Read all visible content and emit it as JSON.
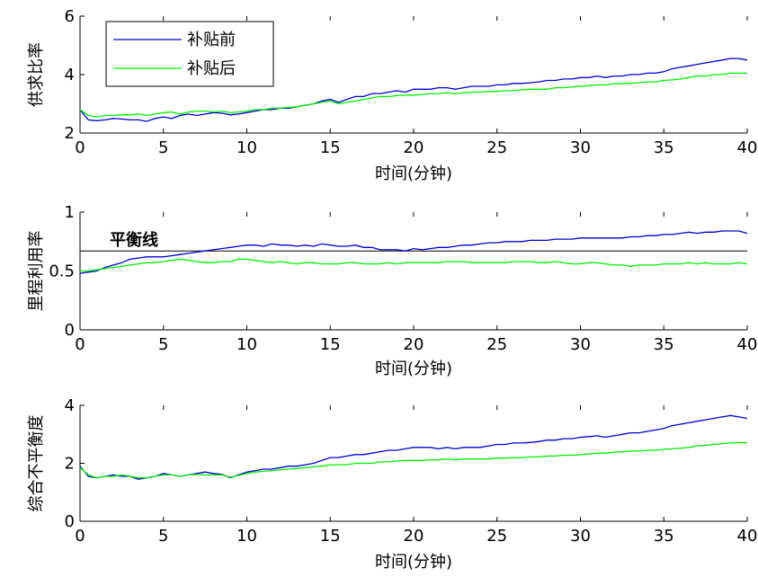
{
  "chart_data": [
    {
      "type": "line",
      "ylabel": "供求比率",
      "xlabel": "时间(分钟)",
      "xlim": [
        0,
        40
      ],
      "ylim": [
        2,
        6
      ],
      "xticks": [
        "0",
        "5",
        "10",
        "15",
        "20",
        "25",
        "30",
        "35",
        "40"
      ],
      "yticks": [
        "2",
        "4",
        "6"
      ],
      "legend": {
        "position": "top-left",
        "entries": [
          "补贴前",
          "补贴后"
        ]
      },
      "series": [
        {
          "name": "补贴前",
          "color": "#0000cc",
          "x": [
            0,
            0.5,
            1,
            1.5,
            2,
            2.5,
            3,
            3.5,
            4,
            4.5,
            5,
            5.5,
            6,
            6.5,
            7,
            7.5,
            8,
            8.5,
            9,
            9.5,
            10,
            10.5,
            11,
            11.5,
            12,
            12.5,
            13,
            13.5,
            14,
            14.5,
            15,
            15.5,
            16,
            16.5,
            17,
            17.5,
            18,
            18.5,
            19,
            19.5,
            20,
            20.5,
            21,
            21.5,
            22,
            22.5,
            23,
            23.5,
            24,
            24.5,
            25,
            25.5,
            26,
            26.5,
            27,
            27.5,
            28,
            28.5,
            29,
            29.5,
            30,
            30.5,
            31,
            31.5,
            32,
            32.5,
            33,
            33.5,
            34,
            34.5,
            35,
            35.5,
            36,
            36.5,
            37,
            37.5,
            38,
            38.5,
            39,
            39.5,
            40
          ],
          "y": [
            2.8,
            2.45,
            2.42,
            2.45,
            2.5,
            2.48,
            2.45,
            2.45,
            2.4,
            2.5,
            2.55,
            2.5,
            2.6,
            2.65,
            2.6,
            2.65,
            2.7,
            2.68,
            2.62,
            2.65,
            2.7,
            2.75,
            2.8,
            2.8,
            2.85,
            2.85,
            2.9,
            2.95,
            3.0,
            3.1,
            3.15,
            3.05,
            3.15,
            3.25,
            3.25,
            3.35,
            3.35,
            3.4,
            3.45,
            3.4,
            3.5,
            3.5,
            3.5,
            3.55,
            3.55,
            3.5,
            3.55,
            3.6,
            3.6,
            3.6,
            3.65,
            3.65,
            3.7,
            3.7,
            3.72,
            3.75,
            3.8,
            3.8,
            3.85,
            3.85,
            3.9,
            3.9,
            3.95,
            3.9,
            3.95,
            3.95,
            4.0,
            4.0,
            4.05,
            4.05,
            4.1,
            4.2,
            4.25,
            4.3,
            4.35,
            4.4,
            4.45,
            4.5,
            4.55,
            4.55,
            4.5
          ]
        },
        {
          "name": "补贴后",
          "color": "#00ee00",
          "x": [
            0,
            0.5,
            1,
            1.5,
            2,
            2.5,
            3,
            3.5,
            4,
            4.5,
            5,
            5.5,
            6,
            6.5,
            7,
            7.5,
            8,
            8.5,
            9,
            9.5,
            10,
            10.5,
            11,
            11.5,
            12,
            12.5,
            13,
            13.5,
            14,
            14.5,
            15,
            15.5,
            16,
            16.5,
            17,
            17.5,
            18,
            18.5,
            19,
            19.5,
            20,
            20.5,
            21,
            21.5,
            22,
            22.5,
            23,
            23.5,
            24,
            24.5,
            25,
            25.5,
            26,
            26.5,
            27,
            27.5,
            28,
            28.5,
            29,
            29.5,
            30,
            30.5,
            31,
            31.5,
            32,
            32.5,
            33,
            33.5,
            34,
            34.5,
            35,
            35.5,
            36,
            36.5,
            37,
            37.5,
            38,
            38.5,
            39,
            39.5,
            40
          ],
          "y": [
            2.8,
            2.6,
            2.55,
            2.6,
            2.6,
            2.62,
            2.62,
            2.65,
            2.6,
            2.65,
            2.7,
            2.72,
            2.65,
            2.72,
            2.75,
            2.75,
            2.72,
            2.75,
            2.7,
            2.72,
            2.75,
            2.8,
            2.8,
            2.85,
            2.85,
            2.88,
            2.9,
            2.95,
            3.0,
            3.05,
            3.1,
            3.0,
            3.05,
            3.1,
            3.15,
            3.2,
            3.25,
            3.25,
            3.28,
            3.3,
            3.3,
            3.32,
            3.35,
            3.35,
            3.38,
            3.35,
            3.38,
            3.4,
            3.4,
            3.42,
            3.42,
            3.45,
            3.45,
            3.48,
            3.5,
            3.5,
            3.5,
            3.55,
            3.55,
            3.58,
            3.6,
            3.62,
            3.65,
            3.65,
            3.68,
            3.7,
            3.7,
            3.72,
            3.75,
            3.75,
            3.8,
            3.82,
            3.85,
            3.9,
            3.95,
            3.95,
            4.0,
            4.0,
            4.05,
            4.05,
            4.05
          ]
        }
      ]
    },
    {
      "type": "line",
      "ylabel": "里程利用率",
      "xlabel": "时间(分钟)",
      "xlim": [
        0,
        40
      ],
      "ylim": [
        0,
        1
      ],
      "xticks": [
        "0",
        "5",
        "10",
        "15",
        "20",
        "25",
        "30",
        "35",
        "40"
      ],
      "yticks": [
        "0",
        "0.5",
        "1"
      ],
      "annotation": {
        "text": "平衡线",
        "y": 0.67
      },
      "series": [
        {
          "name": "补贴前",
          "color": "#0000cc",
          "x": [
            0,
            0.5,
            1,
            1.5,
            2,
            2.5,
            3,
            3.5,
            4,
            4.5,
            5,
            5.5,
            6,
            6.5,
            7,
            7.5,
            8,
            8.5,
            9,
            9.5,
            10,
            10.5,
            11,
            11.5,
            12,
            12.5,
            13,
            13.5,
            14,
            14.5,
            15,
            15.5,
            16,
            16.5,
            17,
            17.5,
            18,
            18.5,
            19,
            19.5,
            20,
            20.5,
            21,
            21.5,
            22,
            22.5,
            23,
            23.5,
            24,
            24.5,
            25,
            25.5,
            26,
            26.5,
            27,
            27.5,
            28,
            28.5,
            29,
            29.5,
            30,
            30.5,
            31,
            31.5,
            32,
            32.5,
            33,
            33.5,
            34,
            34.5,
            35,
            35.5,
            36,
            36.5,
            37,
            37.5,
            38,
            38.5,
            39,
            39.5,
            40
          ],
          "y": [
            0.48,
            0.49,
            0.5,
            0.53,
            0.55,
            0.57,
            0.6,
            0.61,
            0.62,
            0.62,
            0.62,
            0.63,
            0.64,
            0.65,
            0.66,
            0.67,
            0.68,
            0.69,
            0.7,
            0.71,
            0.72,
            0.72,
            0.71,
            0.73,
            0.72,
            0.72,
            0.71,
            0.72,
            0.71,
            0.73,
            0.72,
            0.71,
            0.71,
            0.72,
            0.7,
            0.7,
            0.68,
            0.68,
            0.68,
            0.67,
            0.69,
            0.68,
            0.69,
            0.7,
            0.7,
            0.71,
            0.72,
            0.72,
            0.73,
            0.74,
            0.74,
            0.75,
            0.75,
            0.75,
            0.76,
            0.76,
            0.76,
            0.77,
            0.77,
            0.77,
            0.78,
            0.78,
            0.78,
            0.78,
            0.78,
            0.78,
            0.79,
            0.79,
            0.8,
            0.8,
            0.81,
            0.81,
            0.82,
            0.83,
            0.82,
            0.83,
            0.83,
            0.84,
            0.84,
            0.84,
            0.82
          ]
        },
        {
          "name": "补贴后",
          "color": "#00ee00",
          "x": [
            0,
            0.5,
            1,
            1.5,
            2,
            2.5,
            3,
            3.5,
            4,
            4.5,
            5,
            5.5,
            6,
            6.5,
            7,
            7.5,
            8,
            8.5,
            9,
            9.5,
            10,
            10.5,
            11,
            11.5,
            12,
            12.5,
            13,
            13.5,
            14,
            14.5,
            15,
            15.5,
            16,
            16.5,
            17,
            17.5,
            18,
            18.5,
            19,
            19.5,
            20,
            20.5,
            21,
            21.5,
            22,
            22.5,
            23,
            23.5,
            24,
            24.5,
            25,
            25.5,
            26,
            26.5,
            27,
            27.5,
            28,
            28.5,
            29,
            29.5,
            30,
            30.5,
            31,
            31.5,
            32,
            32.5,
            33,
            33.5,
            34,
            34.5,
            35,
            35.5,
            36,
            36.5,
            37,
            37.5,
            38,
            38.5,
            39,
            39.5,
            40
          ],
          "y": [
            0.5,
            0.5,
            0.51,
            0.52,
            0.53,
            0.54,
            0.55,
            0.56,
            0.57,
            0.57,
            0.58,
            0.59,
            0.6,
            0.59,
            0.58,
            0.57,
            0.57,
            0.58,
            0.58,
            0.6,
            0.6,
            0.59,
            0.58,
            0.57,
            0.58,
            0.57,
            0.56,
            0.57,
            0.57,
            0.56,
            0.56,
            0.56,
            0.57,
            0.57,
            0.56,
            0.56,
            0.56,
            0.57,
            0.56,
            0.57,
            0.57,
            0.57,
            0.57,
            0.57,
            0.58,
            0.58,
            0.58,
            0.57,
            0.57,
            0.57,
            0.57,
            0.57,
            0.58,
            0.58,
            0.58,
            0.57,
            0.57,
            0.58,
            0.57,
            0.56,
            0.56,
            0.57,
            0.57,
            0.56,
            0.55,
            0.55,
            0.54,
            0.55,
            0.55,
            0.55,
            0.56,
            0.56,
            0.56,
            0.57,
            0.56,
            0.57,
            0.56,
            0.56,
            0.56,
            0.57,
            0.56
          ]
        }
      ]
    },
    {
      "type": "line",
      "ylabel": "综合不平衡度",
      "xlabel": "时间(分钟)",
      "xlim": [
        0,
        40
      ],
      "ylim": [
        0,
        4
      ],
      "xticks": [
        "0",
        "5",
        "10",
        "15",
        "20",
        "25",
        "30",
        "35",
        "40"
      ],
      "yticks": [
        "0",
        "2",
        "4"
      ],
      "series": [
        {
          "name": "补贴前",
          "color": "#0000cc",
          "x": [
            0,
            0.5,
            1,
            1.5,
            2,
            2.5,
            3,
            3.5,
            4,
            4.5,
            5,
            5.5,
            6,
            6.5,
            7,
            7.5,
            8,
            8.5,
            9,
            9.5,
            10,
            10.5,
            11,
            11.5,
            12,
            12.5,
            13,
            13.5,
            14,
            14.5,
            15,
            15.5,
            16,
            16.5,
            17,
            17.5,
            18,
            18.5,
            19,
            19.5,
            20,
            20.5,
            21,
            21.5,
            22,
            22.5,
            23,
            23.5,
            24,
            24.5,
            25,
            25.5,
            26,
            26.5,
            27,
            27.5,
            28,
            28.5,
            29,
            29.5,
            30,
            30.5,
            31,
            31.5,
            32,
            32.5,
            33,
            33.5,
            34,
            34.5,
            35,
            35.5,
            36,
            36.5,
            37,
            37.5,
            38,
            38.5,
            39,
            39.5,
            40
          ],
          "y": [
            1.9,
            1.55,
            1.5,
            1.55,
            1.6,
            1.55,
            1.55,
            1.45,
            1.5,
            1.55,
            1.65,
            1.6,
            1.55,
            1.6,
            1.65,
            1.7,
            1.65,
            1.62,
            1.5,
            1.6,
            1.7,
            1.75,
            1.8,
            1.8,
            1.85,
            1.9,
            1.9,
            1.95,
            2.0,
            2.1,
            2.2,
            2.2,
            2.25,
            2.3,
            2.3,
            2.35,
            2.4,
            2.45,
            2.45,
            2.5,
            2.55,
            2.55,
            2.55,
            2.5,
            2.55,
            2.5,
            2.55,
            2.55,
            2.55,
            2.6,
            2.65,
            2.65,
            2.7,
            2.7,
            2.72,
            2.75,
            2.8,
            2.8,
            2.85,
            2.85,
            2.9,
            2.92,
            2.95,
            2.9,
            2.95,
            3.0,
            3.05,
            3.05,
            3.1,
            3.15,
            3.2,
            3.3,
            3.35,
            3.4,
            3.45,
            3.5,
            3.55,
            3.6,
            3.65,
            3.6,
            3.55
          ]
        },
        {
          "name": "补贴后",
          "color": "#00ee00",
          "x": [
            0,
            0.5,
            1,
            1.5,
            2,
            2.5,
            3,
            3.5,
            4,
            4.5,
            5,
            5.5,
            6,
            6.5,
            7,
            7.5,
            8,
            8.5,
            9,
            9.5,
            10,
            10.5,
            11,
            11.5,
            12,
            12.5,
            13,
            13.5,
            14,
            14.5,
            15,
            15.5,
            16,
            16.5,
            17,
            17.5,
            18,
            18.5,
            19,
            19.5,
            20,
            20.5,
            21,
            21.5,
            22,
            22.5,
            23,
            23.5,
            24,
            24.5,
            25,
            25.5,
            26,
            26.5,
            27,
            27.5,
            28,
            28.5,
            29,
            29.5,
            30,
            30.5,
            31,
            31.5,
            32,
            32.5,
            33,
            33.5,
            34,
            34.5,
            35,
            35.5,
            36,
            36.5,
            37,
            37.5,
            38,
            38.5,
            39,
            39.5,
            40
          ],
          "y": [
            1.85,
            1.6,
            1.5,
            1.55,
            1.55,
            1.6,
            1.55,
            1.5,
            1.5,
            1.55,
            1.6,
            1.6,
            1.55,
            1.6,
            1.62,
            1.6,
            1.6,
            1.6,
            1.52,
            1.58,
            1.65,
            1.7,
            1.72,
            1.75,
            1.78,
            1.8,
            1.82,
            1.85,
            1.88,
            1.9,
            1.95,
            1.95,
            1.95,
            2.0,
            2.0,
            2.0,
            2.05,
            2.05,
            2.08,
            2.1,
            2.1,
            2.1,
            2.12,
            2.12,
            2.15,
            2.12,
            2.15,
            2.15,
            2.15,
            2.15,
            2.18,
            2.18,
            2.2,
            2.2,
            2.22,
            2.22,
            2.25,
            2.25,
            2.28,
            2.28,
            2.3,
            2.32,
            2.35,
            2.35,
            2.38,
            2.4,
            2.42,
            2.42,
            2.45,
            2.45,
            2.48,
            2.5,
            2.52,
            2.55,
            2.6,
            2.62,
            2.65,
            2.68,
            2.7,
            2.72,
            2.7
          ]
        }
      ]
    }
  ]
}
